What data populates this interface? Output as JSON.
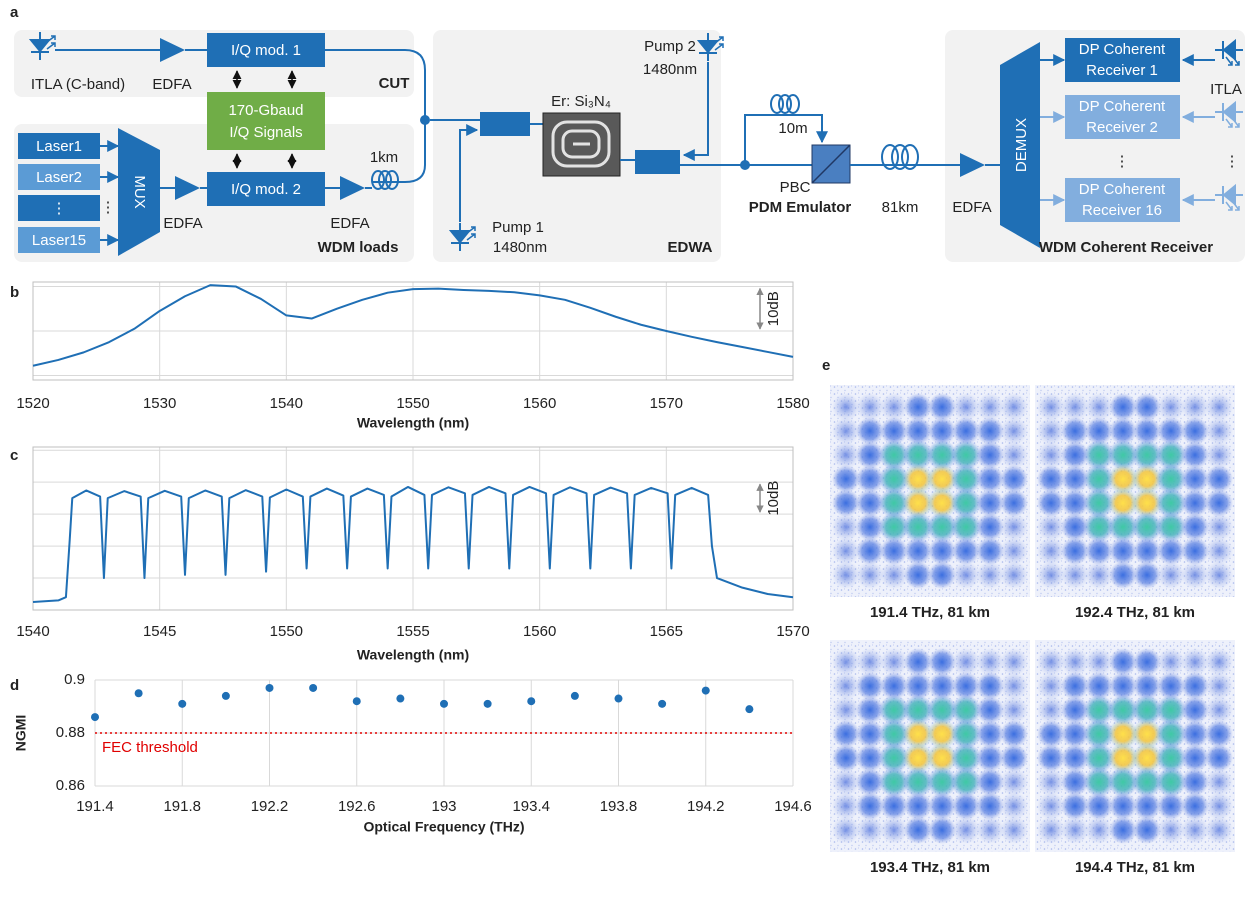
{
  "panel_labels": [
    "a",
    "b",
    "c",
    "d",
    "e"
  ],
  "diagram": {
    "itla_cband": "ITLA (C-band)",
    "edfa_1": "EDFA",
    "iq_mod_1": "I/Q mod. 1",
    "cut": "CUT",
    "signals": [
      "170-Gbaud",
      "I/Q Signals"
    ],
    "lasers": [
      "Laser1",
      "Laser2",
      "⋮",
      "Laser15"
    ],
    "laser_dots": "⋮",
    "mux": "MUX",
    "edfa_2": "EDFA",
    "iq_mod_2": "I/Q mod. 2",
    "edfa_3": "EDFA",
    "fiber_1": "1km",
    "wdm_loads": "WDM loads",
    "pump_2": [
      "Pump 2",
      "1480nm"
    ],
    "chip": "Er: Si₃N₄",
    "pump_1": [
      "Pump 1",
      "1480nm"
    ],
    "edwa": "EDWA",
    "fiber_2": "10m",
    "pbc": "PBC",
    "pdm_emulator": "PDM Emulator",
    "fiber_3": "81km",
    "edfa_4": "EDFA",
    "demux": "DEMUX",
    "receivers": [
      [
        "DP Coherent",
        "Receiver 1"
      ],
      [
        "DP Coherent",
        "Receiver 2"
      ],
      [
        "DP Coherent",
        "Receiver 16"
      ]
    ],
    "receiver_dots": "⋮",
    "itla": "ITLA",
    "itla_dots": "⋮",
    "wdm_receiver": "WDM Coherent Receiver"
  },
  "chart_data": [
    {
      "type": "line",
      "color": "#1f6fb5",
      "xlabel": "Wavelength (nm)",
      "scale_label": "10dB",
      "x": [
        1520,
        1522,
        1524,
        1526,
        1528,
        1530,
        1532,
        1534,
        1536,
        1538,
        1540,
        1542,
        1544,
        1546,
        1548,
        1550,
        1552,
        1554,
        1556,
        1558,
        1560,
        1562,
        1564,
        1566,
        1568,
        1570,
        1572,
        1574,
        1576,
        1578,
        1580
      ],
      "values": [
        -17.8,
        -16.5,
        -14.8,
        -12.5,
        -9.5,
        -5.5,
        -2.2,
        0.3,
        0,
        -2.8,
        -6.5,
        -7.2,
        -5,
        -3,
        -1.4,
        -0.6,
        -0.5,
        -0.8,
        -1,
        -1.3,
        -2,
        -3,
        -4.8,
        -6.8,
        -8.6,
        -10,
        -11.3,
        -12.5,
        -13.6,
        -14.7,
        -15.8
      ],
      "xlim": [
        1520,
        1580
      ],
      "xticks": [
        1520,
        1530,
        1540,
        1550,
        1560,
        1570,
        1580
      ],
      "ylim": [
        -21,
        1
      ],
      "ygrid": [
        0,
        -10,
        -20
      ]
    },
    {
      "type": "line",
      "color": "#1f6fb5",
      "xlabel": "Wavelength (nm)",
      "scale_label": "10dB",
      "x": [
        1540,
        1541,
        1541.3,
        1541.45,
        1541.55,
        1542.1,
        1542.65,
        1542.8,
        1542.95,
        1543.6,
        1544.25,
        1544.4,
        1544.55,
        1545.2,
        1545.85,
        1546,
        1546.15,
        1546.8,
        1547.45,
        1547.6,
        1547.75,
        1548.4,
        1549.05,
        1549.2,
        1549.35,
        1550,
        1550.65,
        1550.8,
        1550.95,
        1551.6,
        1552.25,
        1552.4,
        1552.55,
        1553.2,
        1553.85,
        1554,
        1554.15,
        1554.8,
        1555.45,
        1555.6,
        1555.75,
        1556.4,
        1557.05,
        1557.2,
        1557.35,
        1558,
        1558.65,
        1558.8,
        1558.95,
        1559.6,
        1560.25,
        1560.4,
        1560.55,
        1561.2,
        1561.85,
        1562,
        1562.15,
        1562.8,
        1563.45,
        1563.6,
        1563.75,
        1564.4,
        1565.05,
        1565.2,
        1565.35,
        1566,
        1566.65,
        1566.8,
        1567,
        1568,
        1569,
        1570
      ],
      "values": [
        -37.5,
        -37,
        -36,
        -18,
        -5,
        -2.6,
        -4.5,
        -30,
        -5,
        -2.8,
        -4.5,
        -30,
        -5,
        -2.7,
        -4.5,
        -29,
        -5,
        -2.6,
        -4.5,
        -29,
        -5,
        -2.5,
        -4.5,
        -28,
        -4.8,
        -2.3,
        -4.5,
        -27,
        -4.5,
        -2,
        -4.2,
        -27,
        -4.5,
        -2,
        -4,
        -27,
        -4.5,
        -1.5,
        -4,
        -27,
        -4,
        -1.6,
        -3.5,
        -27,
        -4,
        -1.5,
        -3.5,
        -27,
        -4,
        -1.5,
        -3.5,
        -27,
        -4,
        -1.6,
        -3.5,
        -27,
        -4,
        -1.7,
        -3.5,
        -27,
        -4,
        -1.8,
        -3.5,
        -27,
        -4,
        -1.8,
        -4,
        -20,
        -30,
        -33,
        -35,
        -36
      ],
      "xlim": [
        1540,
        1570
      ],
      "xticks": [
        1540,
        1545,
        1550,
        1555,
        1560,
        1565,
        1570
      ],
      "ylim": [
        -40,
        11
      ],
      "ygrid": [
        10,
        0,
        -10,
        -20,
        -30
      ]
    },
    {
      "type": "scatter",
      "color": "#1f6fb5",
      "xlabel": "Optical Frequency (THz)",
      "ylabel": "NGMI",
      "x": [
        191.4,
        191.6,
        191.8,
        192,
        192.2,
        192.4,
        192.6,
        192.8,
        193,
        193.2,
        193.4,
        193.6,
        193.8,
        194,
        194.2,
        194.4
      ],
      "values": [
        0.886,
        0.895,
        0.891,
        0.894,
        0.897,
        0.897,
        0.892,
        0.893,
        0.891,
        0.891,
        0.892,
        0.894,
        0.893,
        0.891,
        0.896,
        0.889
      ],
      "xlim": [
        191.4,
        194.6
      ],
      "xticks": [
        191.4,
        191.8,
        192.2,
        192.6,
        193,
        193.4,
        193.8,
        194.2,
        194.6
      ],
      "ylim": [
        0.86,
        0.9
      ],
      "yticks": [
        0.86,
        0.88,
        0.9
      ],
      "grid": true,
      "threshold": {
        "value": 0.88,
        "label": "FEC threshold",
        "color": "#e00000"
      }
    }
  ],
  "constellations": [
    "191.4 THz, 81 km",
    "192.4 THz, 81 km",
    "193.4 THz, 81 km",
    "194.4 THz, 81 km"
  ]
}
